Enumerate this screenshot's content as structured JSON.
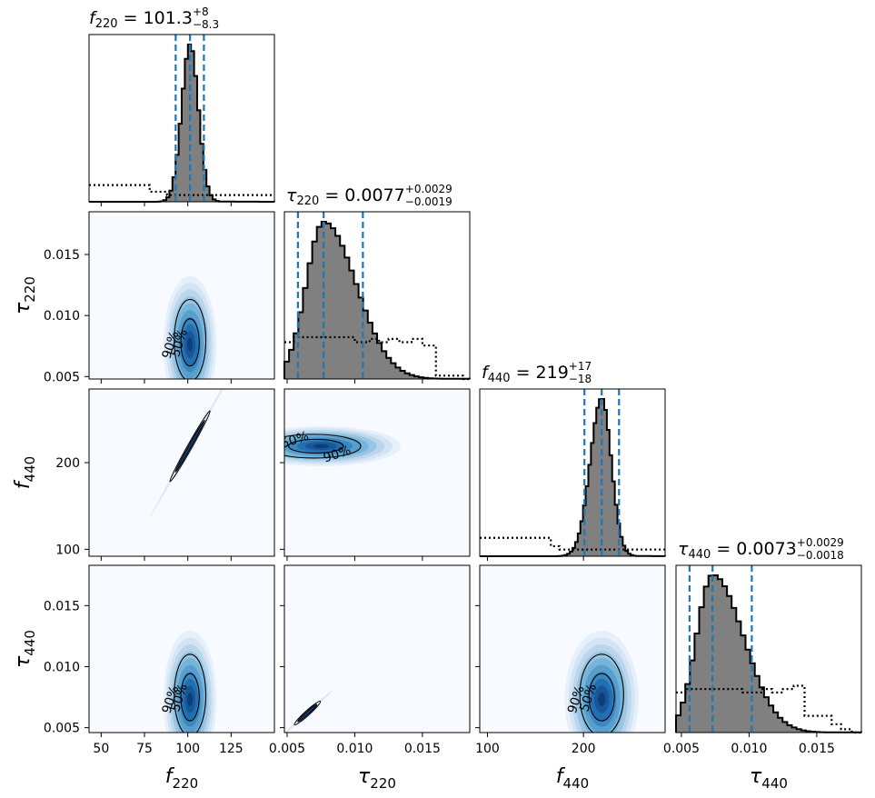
{
  "chart_data": {
    "type": "corner",
    "colors": {
      "hist_fill": "#808080",
      "hist_edge": "#000000",
      "quantile_line": "#1f77b4",
      "prior_line": "#000000",
      "density_low": "#f7fbff",
      "density_high": "#08306b",
      "contour": "#000000"
    },
    "grid": false,
    "params": [
      {
        "symbol": "f",
        "sub": "220",
        "title_main": "101.3",
        "title_up": "+8",
        "title_down": "−8.3",
        "range": [
          43,
          150
        ],
        "ticks": [
          50,
          75,
          100,
          125
        ],
        "tick_labels": [
          "50",
          "75",
          "100",
          "125"
        ],
        "quantiles": [
          93,
          101.3,
          109.3
        ],
        "hist": {
          "center": 101.3,
          "sigma_lo": 4.8,
          "sigma_hi": 4.8,
          "peak": 1.0,
          "steps": 60
        },
        "prior": {
          "edges": [
            43,
            78,
            88,
            150
          ],
          "levels": [
            0.1,
            0.06,
            0.04
          ]
        }
      },
      {
        "symbol": "τ",
        "sub": "220",
        "title_main": "0.0077",
        "title_up": "+0.0029",
        "title_down": "−0.0019",
        "range": [
          0.0048,
          0.0185
        ],
        "ticks": [
          0.005,
          0.01,
          0.015
        ],
        "tick_labels": [
          "0.005",
          "0.010",
          "0.015"
        ],
        "quantiles": [
          0.0058,
          0.0077,
          0.0106
        ],
        "hist": {
          "center": 0.0077,
          "sigma_lo": 0.0013,
          "sigma_hi": 0.0024,
          "peak": 1.0,
          "steps": 40
        },
        "prior": {
          "edges": [
            0.0048,
            0.0055,
            0.01,
            0.0111,
            0.0118,
            0.0125,
            0.0133,
            0.0142,
            0.015,
            0.016,
            0.018,
            0.0185
          ],
          "levels": [
            0.22,
            0.25,
            0.22,
            0.24,
            0.22,
            0.24,
            0.22,
            0.24,
            0.2,
            0.02,
            0.0
          ]
        }
      },
      {
        "symbol": "f",
        "sub": "440",
        "title_main": "219",
        "title_up": "+17",
        "title_down": "−18",
        "range": [
          92,
          285
        ],
        "ticks": [
          100,
          200
        ],
        "tick_labels": [
          "100",
          "200"
        ],
        "quantiles": [
          201,
          219,
          237
        ],
        "hist": {
          "center": 219,
          "sigma_lo": 12,
          "sigma_hi": 10,
          "peak": 1.0,
          "steps": 70
        },
        "prior": {
          "edges": [
            92,
            166,
            175,
            285
          ],
          "levels": [
            0.11,
            0.06,
            0.04
          ]
        }
      },
      {
        "symbol": "τ",
        "sub": "440",
        "title_main": "0.0073",
        "title_up": "+0.0029",
        "title_down": "−0.0018",
        "range": [
          0.0046,
          0.0183
        ],
        "ticks": [
          0.005,
          0.01,
          0.015
        ],
        "tick_labels": [
          "0.005",
          "0.010",
          "0.015"
        ],
        "quantiles": [
          0.0056,
          0.0073,
          0.0102
        ],
        "hist": {
          "center": 0.0073,
          "sigma_lo": 0.0012,
          "sigma_hi": 0.0023,
          "peak": 1.0,
          "steps": 40
        },
        "prior": {
          "edges": [
            0.0046,
            0.0053,
            0.0095,
            0.0109,
            0.0117,
            0.0125,
            0.0133,
            0.0141,
            0.0161,
            0.0168,
            0.0176,
            0.0183
          ],
          "levels": [
            0.24,
            0.26,
            0.24,
            0.26,
            0.24,
            0.26,
            0.28,
            0.1,
            0.05,
            0.02,
            0.0
          ]
        }
      }
    ],
    "pairs": [
      {
        "row": 1,
        "col": 0,
        "kind": "blob",
        "mean": [
          101.3,
          0.0078
        ],
        "sx": 4.8,
        "sy": 0.0016,
        "label50": "50%",
        "label90": "90%"
      },
      {
        "row": 2,
        "col": 0,
        "kind": "line",
        "mean": [
          101.3,
          219
        ],
        "sx": 4.8,
        "sy": 17,
        "rho": 0.999
      },
      {
        "row": 2,
        "col": 1,
        "kind": "blob_h",
        "mean": [
          0.0075,
          219
        ],
        "sx": 0.0016,
        "sy": 12,
        "label50": "50%",
        "label90": "90%"
      },
      {
        "row": 3,
        "col": 0,
        "kind": "blob",
        "mean": [
          101.3,
          0.0075
        ],
        "sx": 4.8,
        "sy": 0.0016,
        "label50": "50%",
        "label90": "90%"
      },
      {
        "row": 3,
        "col": 1,
        "kind": "line",
        "mean": [
          0.0065,
          0.0062
        ],
        "sx": 0.0004,
        "sy": 0.0004,
        "rho": 0.999
      },
      {
        "row": 3,
        "col": 2,
        "kind": "blob",
        "mean": [
          219,
          0.0075
        ],
        "sx": 12,
        "sy": 0.0016,
        "label50": "50%",
        "label90": "90%"
      }
    ]
  }
}
